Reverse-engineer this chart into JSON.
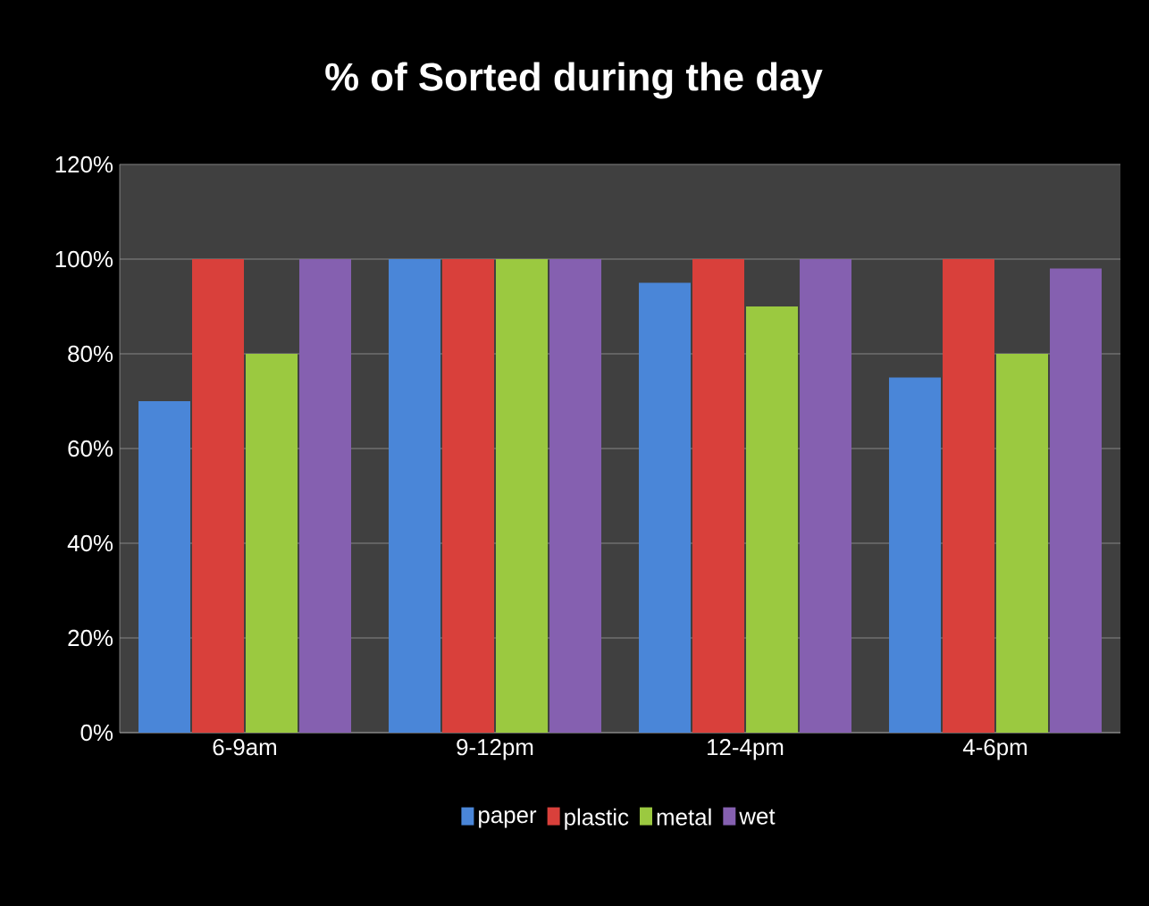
{
  "chart_data": {
    "type": "bar",
    "title": "% of Sorted during the day",
    "categories": [
      "6-9am",
      "9-12pm",
      "12-4pm",
      "4-6pm"
    ],
    "series": [
      {
        "name": "paper",
        "color": "#4a86d8",
        "values": [
          70,
          100,
          95,
          75
        ]
      },
      {
        "name": "plastic",
        "color": "#d9403b",
        "values": [
          100,
          100,
          100,
          100
        ]
      },
      {
        "name": "metal",
        "color": "#9bc940",
        "values": [
          80,
          100,
          90,
          80
        ]
      },
      {
        "name": "wet",
        "color": "#8560b0",
        "values": [
          100,
          100,
          100,
          98
        ]
      }
    ],
    "ylim": [
      0,
      120
    ],
    "yticks": [
      {
        "value": 0,
        "label": "0%"
      },
      {
        "value": 20,
        "label": "20%"
      },
      {
        "value": 40,
        "label": "40%"
      },
      {
        "value": 60,
        "label": "60%"
      },
      {
        "value": 80,
        "label": "80%"
      },
      {
        "value": 100,
        "label": "100%"
      },
      {
        "value": 120,
        "label": "120%"
      }
    ],
    "grid": "y",
    "legend": "bottom"
  }
}
